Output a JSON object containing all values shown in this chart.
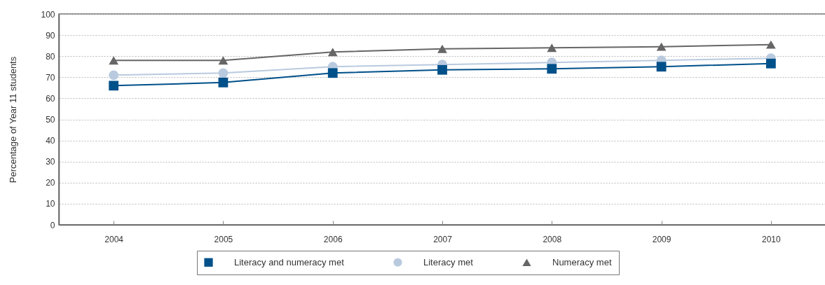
{
  "chart_data": {
    "type": "line",
    "ylabel": "Percentage of Year 11 students",
    "categories": [
      "2004",
      "2005",
      "2006",
      "2007",
      "2008",
      "2009",
      "2010"
    ],
    "series": [
      {
        "name": "Literacy and numeracy met",
        "color": "#00508a",
        "marker": "square",
        "values": [
          66,
          67.5,
          72,
          73.5,
          74,
          75,
          76.5
        ]
      },
      {
        "name": "Literacy met",
        "color": "#b9cadf",
        "marker": "circle",
        "values": [
          71,
          72,
          75,
          76,
          77,
          78,
          79
        ]
      },
      {
        "name": "Numeracy met",
        "color": "#666666",
        "marker": "triangle",
        "values": [
          78,
          78,
          82,
          83.5,
          84,
          84.5,
          85.5
        ]
      }
    ],
    "ylim": [
      0,
      100
    ],
    "yticks": [
      0,
      10,
      20,
      30,
      40,
      50,
      60,
      70,
      80,
      90,
      100
    ],
    "grid": "y",
    "legend": "bottom"
  }
}
